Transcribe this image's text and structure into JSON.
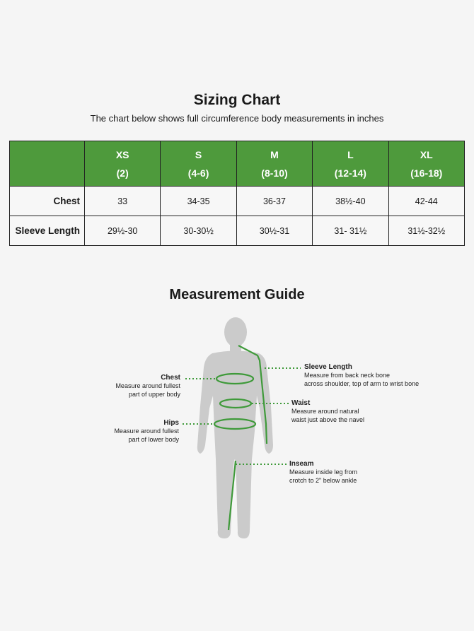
{
  "header": {
    "title": "Sizing Chart",
    "subtitle": "The chart below shows full circumference body measurements in inches"
  },
  "table": {
    "columns": [
      {
        "size": "XS",
        "range": "(2)"
      },
      {
        "size": "S",
        "range": "(4-6)"
      },
      {
        "size": "M",
        "range": "(8-10)"
      },
      {
        "size": "L",
        "range": "(12-14)"
      },
      {
        "size": "XL",
        "range": "(16-18)"
      }
    ],
    "rows": [
      {
        "label": "Chest",
        "values": [
          "33",
          "34-35",
          "36-37",
          "38½-40",
          "42-44"
        ]
      },
      {
        "label": "Sleeve Length",
        "values": [
          "29½-30",
          "30-30½",
          "30½-31",
          "31- 31½",
          "31½-32½"
        ]
      }
    ]
  },
  "guide": {
    "title": "Measurement Guide",
    "chest": {
      "title": "Chest",
      "line1": "Measure around fullest",
      "line2": "part of upper body"
    },
    "hips": {
      "title": "Hips",
      "line1": "Measure around fullest",
      "line2": "part of lower body"
    },
    "sleeve": {
      "title": "Sleeve Length",
      "line1": "Measure  from back neck bone",
      "line2": "across shoulder, top of arm to wrist bone"
    },
    "waist": {
      "title": "Waist",
      "line1": "Measure around natural",
      "line2": "waist just above the navel"
    },
    "inseam": {
      "title": "Inseam",
      "line1": "Measure inside leg from",
      "line2": "crotch to 2\" below ankle"
    }
  },
  "colors": {
    "accent": "#4e9a3c",
    "figure": "#cbcbcb",
    "background": "#f5f5f5"
  }
}
